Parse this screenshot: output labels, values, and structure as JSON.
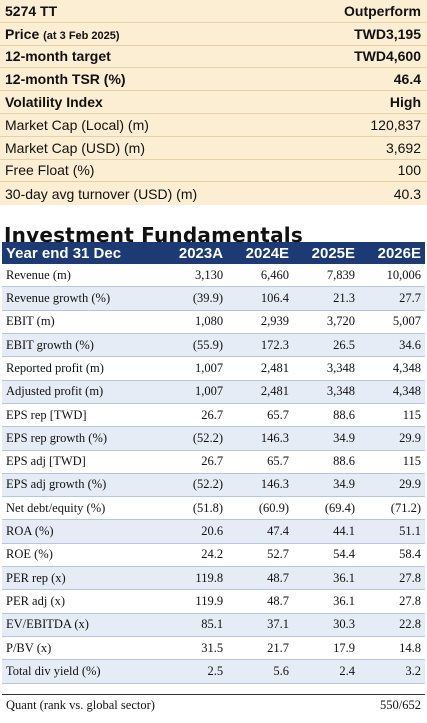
{
  "summary": {
    "ticker": "5274 TT",
    "rating": "Outperform",
    "price_label": "Price",
    "price_date": "(at 3 Feb 2025)",
    "price_value": "TWD3,195",
    "target_label": "12-month target",
    "target_value": "TWD4,600",
    "tsr_label": "12-month TSR (%)",
    "tsr_value": "46.4",
    "vol_label": "Volatility Index",
    "vol_value": "High",
    "mcap_local_label": "Market Cap (Local) (m)",
    "mcap_local_value": "120,837",
    "mcap_usd_label": "Market Cap (USD) (m)",
    "mcap_usd_value": "3,692",
    "float_label": "Free Float (%)",
    "float_value": "100",
    "turnover_label": "30-day avg turnover (USD) (m)",
    "turnover_value": "40.3"
  },
  "section_title": "Investment Fundamentals",
  "table": {
    "headers": [
      "Year end 31 Dec",
      "2023A",
      "2024E",
      "2025E",
      "2026E"
    ],
    "rows": [
      [
        "Revenue (m)",
        "3,130",
        "6,460",
        "7,839",
        "10,006"
      ],
      [
        "Revenue growth (%)",
        "(39.9)",
        "106.4",
        "21.3",
        "27.7"
      ],
      [
        "EBIT (m)",
        "1,080",
        "2,939",
        "3,720",
        "5,007"
      ],
      [
        "EBIT growth (%)",
        "(55.9)",
        "172.3",
        "26.5",
        "34.6"
      ],
      [
        "Reported profit (m)",
        "1,007",
        "2,481",
        "3,348",
        "4,348"
      ],
      [
        "Adjusted profit (m)",
        "1,007",
        "2,481",
        "3,348",
        "4,348"
      ],
      [
        "EPS rep [TWD]",
        "26.7",
        "65.7",
        "88.6",
        "115"
      ],
      [
        "EPS rep growth (%)",
        "(52.2)",
        "146.3",
        "34.9",
        "29.9"
      ],
      [
        "EPS adj [TWD]",
        "26.7",
        "65.7",
        "88.6",
        "115"
      ],
      [
        "EPS adj growth (%)",
        "(52.2)",
        "146.3",
        "34.9",
        "29.9"
      ],
      [
        "Net debt/equity (%)",
        "(51.8)",
        "(60.9)",
        "(69.4)",
        "(71.2)"
      ],
      [
        "ROA (%)",
        "20.6",
        "47.4",
        "44.1",
        "51.1"
      ],
      [
        "ROE (%)",
        "24.2",
        "52.7",
        "54.4",
        "58.4"
      ],
      [
        "PER rep (x)",
        "119.8",
        "48.7",
        "36.1",
        "27.8"
      ],
      [
        "PER adj (x)",
        "119.9",
        "48.7",
        "36.1",
        "27.8"
      ],
      [
        "EV/EBITDA (x)",
        "85.1",
        "37.1",
        "30.3",
        "22.8"
      ],
      [
        "P/BV (x)",
        "31.5",
        "21.7",
        "17.9",
        "14.8"
      ],
      [
        "Total div yield (%)",
        "2.5",
        "5.6",
        "2.4",
        "3.2"
      ]
    ]
  },
  "quant": {
    "label": "Quant (rank vs. global sector)",
    "value": "550/652"
  }
}
